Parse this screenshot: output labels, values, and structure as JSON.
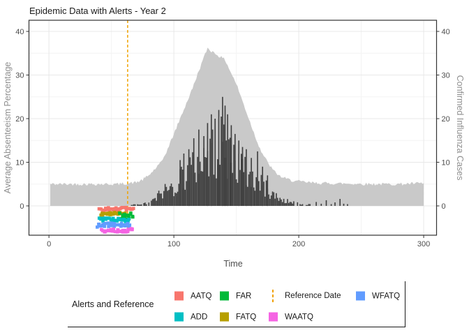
{
  "chart_data": {
    "type": "combo",
    "title": "Epidemic Data with Alerts - Year 2",
    "xlabel": "Time",
    "ylabel_left": "Average Absenteeism Percentage",
    "ylabel_right": "Confirmed Influenza Cases",
    "xlim": [
      -16,
      310.3
    ],
    "ylim": [
      -6.72,
      42.56
    ],
    "x_ticks": [
      0,
      100,
      200,
      300
    ],
    "x_minor_ticks": [
      50,
      150,
      250
    ],
    "y_ticks": [
      0,
      10,
      20,
      30,
      40
    ],
    "y_minor_ticks": [
      5,
      15,
      25,
      35
    ],
    "grid": true,
    "legend_position": "bottom",
    "reference_date": 63,
    "series": [
      {
        "name": "Average Absenteeism Percentage",
        "type": "area",
        "color": "#C9C9C9",
        "noise": 0.35,
        "x_start": 1,
        "x_end": 300,
        "anchors": [
          [
            1,
            5
          ],
          [
            20,
            5
          ],
          [
            40,
            5
          ],
          [
            55,
            5
          ],
          [
            60,
            5.1
          ],
          [
            65,
            5.2
          ],
          [
            70,
            5.4
          ],
          [
            75,
            6
          ],
          [
            80,
            7
          ],
          [
            85,
            8.5
          ],
          [
            90,
            10
          ],
          [
            95,
            13
          ],
          [
            100,
            16.5
          ],
          [
            105,
            20
          ],
          [
            110,
            23.5
          ],
          [
            115,
            27
          ],
          [
            120,
            31
          ],
          [
            124,
            34
          ],
          [
            127,
            36.2
          ],
          [
            130,
            35.5
          ],
          [
            134,
            34.8
          ],
          [
            138,
            34
          ],
          [
            141,
            33.5
          ],
          [
            145,
            31
          ],
          [
            150,
            28
          ],
          [
            155,
            24
          ],
          [
            160,
            20
          ],
          [
            165,
            16
          ],
          [
            170,
            12.5
          ],
          [
            175,
            10
          ],
          [
            180,
            8
          ],
          [
            185,
            6.8
          ],
          [
            190,
            6.2
          ],
          [
            195,
            5.8
          ],
          [
            200,
            5.6
          ],
          [
            210,
            5.3
          ],
          [
            220,
            5.2
          ],
          [
            240,
            5.1
          ],
          [
            260,
            5
          ],
          [
            280,
            5
          ],
          [
            300,
            5.2
          ]
        ]
      },
      {
        "name": "Confirmed Influenza Cases",
        "type": "bar",
        "color": "#3D3D3D",
        "x_start": 66,
        "x_end": 210,
        "anchors": [
          [
            66,
            0.2
          ],
          [
            70,
            0.3
          ],
          [
            75,
            0.4
          ],
          [
            80,
            0.8
          ],
          [
            85,
            1.5
          ],
          [
            88,
            2.5
          ],
          [
            92,
            3.5
          ],
          [
            96,
            4
          ],
          [
            100,
            4.5
          ],
          [
            104,
            6
          ],
          [
            108,
            7.5
          ],
          [
            112,
            8
          ],
          [
            116,
            9
          ],
          [
            120,
            10.5
          ],
          [
            124,
            11
          ],
          [
            128,
            12
          ],
          [
            132,
            12.5
          ],
          [
            136,
            13.5
          ],
          [
            140,
            14
          ],
          [
            144,
            12.5
          ],
          [
            148,
            11
          ],
          [
            152,
            9.5
          ],
          [
            156,
            8
          ],
          [
            160,
            7
          ],
          [
            164,
            6
          ],
          [
            168,
            5.5
          ],
          [
            172,
            4.5
          ],
          [
            176,
            3.5
          ],
          [
            180,
            2.5
          ],
          [
            184,
            1.8
          ],
          [
            188,
            1.2
          ],
          [
            192,
            1
          ],
          [
            196,
            0.8
          ],
          [
            200,
            0.6
          ],
          [
            205,
            0.4
          ],
          [
            210,
            0.3
          ]
        ],
        "spikes": [
          [
            105,
            10.5
          ],
          [
            108,
            12
          ],
          [
            112,
            13
          ],
          [
            116,
            15.5
          ],
          [
            120,
            17.5
          ],
          [
            124,
            16
          ],
          [
            127,
            19
          ],
          [
            130,
            21
          ],
          [
            133,
            20
          ],
          [
            136,
            22
          ],
          [
            139,
            25
          ],
          [
            141,
            23
          ],
          [
            143,
            21
          ],
          [
            146,
            18.5
          ],
          [
            149,
            16.5
          ],
          [
            152,
            15
          ],
          [
            155,
            13.5
          ],
          [
            158,
            13
          ],
          [
            162,
            11
          ],
          [
            167,
            12.5
          ],
          [
            171,
            9
          ],
          [
            175,
            7
          ]
        ],
        "sporadic": [
          [
            214,
            0.9
          ],
          [
            218,
            0.5
          ],
          [
            222,
            1.3
          ],
          [
            226,
            0.4
          ],
          [
            229,
            0.8
          ],
          [
            233,
            1.6
          ],
          [
            236,
            0.5
          ],
          [
            239,
            0.4
          ]
        ]
      }
    ],
    "alerts": [
      {
        "label": "AATQ",
        "color": "#F8766D",
        "t_start": 40,
        "t_end": 67,
        "level": -0.7,
        "jitter_t": 0.8,
        "jitter_v": 0.35,
        "count": 30
      },
      {
        "label": "FATQ",
        "color": "#B79F00",
        "t_start": 42,
        "t_end": 60.5,
        "level": -1.85,
        "jitter_t": 0.7,
        "jitter_v": 0.35,
        "count": 24
      },
      {
        "label": "FAR",
        "color": "#00BA38",
        "t_start": 56.5,
        "t_end": 67,
        "level": -2.3,
        "jitter_t": 0.6,
        "jitter_v": 0.75,
        "count": 18
      },
      {
        "label": "ADD",
        "color": "#00BFC4",
        "t_start": 40,
        "t_end": 64.5,
        "level": -3.2,
        "jitter_t": 0.8,
        "jitter_v": 0.4,
        "count": 28
      },
      {
        "label": "WFATQ",
        "color": "#619CFF",
        "t_start": 39,
        "t_end": 64.5,
        "level": -4.4,
        "jitter_t": 0.8,
        "jitter_v": 0.5,
        "count": 30
      },
      {
        "label": "WAATQ",
        "color": "#F564E3",
        "t_start": 42,
        "t_end": 67,
        "level": -5.6,
        "jitter_t": 0.8,
        "jitter_v": 0.4,
        "count": 30
      }
    ]
  },
  "legend": {
    "title": "Alerts and Reference",
    "items": [
      {
        "label": "AATQ",
        "color": "#F8766D",
        "type": "swatch",
        "row": 0,
        "col": 0
      },
      {
        "label": "ADD",
        "color": "#00BFC4",
        "type": "swatch",
        "row": 1,
        "col": 0
      },
      {
        "label": "FAR",
        "color": "#00BA38",
        "type": "swatch",
        "row": 0,
        "col": 1
      },
      {
        "label": "FATQ",
        "color": "#B79F00",
        "type": "swatch",
        "row": 1,
        "col": 1
      },
      {
        "label": "Reference Date",
        "color": "#F0A202",
        "type": "dashed-line",
        "row": 0,
        "col": 2
      },
      {
        "label": "WAATQ",
        "color": "#F564E3",
        "type": "swatch",
        "row": 1,
        "col": 2
      },
      {
        "label": "WFATQ",
        "color": "#619CFF",
        "type": "swatch",
        "row": 0,
        "col": 3
      }
    ]
  },
  "colors": {
    "area": "#C9C9C9",
    "bars": "#3D3D3D",
    "reference_line": "#F0A202",
    "panel_border": "#333333",
    "grid_major": "#E8E8E8",
    "grid_minor": "#F4F4F4",
    "tick_text": "#4D4D4D",
    "axis_title_text": "#8F8F8F"
  }
}
